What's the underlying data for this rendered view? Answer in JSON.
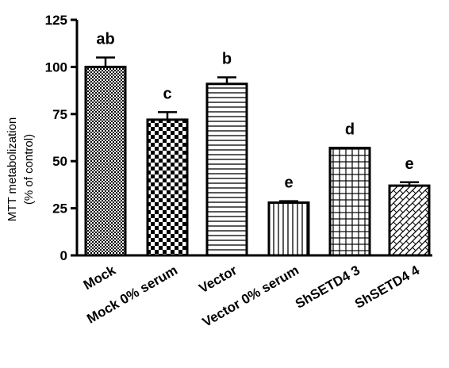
{
  "chart_data": {
    "type": "bar",
    "categories": [
      "Mock",
      "Mock 0% serum",
      "Vector",
      "Vector 0% serum",
      "ShSETD4 3",
      "ShSETD4 4"
    ],
    "values": [
      100,
      72,
      91,
      28,
      57,
      37
    ],
    "errors": [
      5,
      4,
      3.5,
      0.8,
      0,
      1.8
    ],
    "significance": [
      "ab",
      "c",
      "b",
      "e",
      "d",
      "e"
    ],
    "patterns": [
      "fine-check",
      "checker",
      "horizontal-lines",
      "vertical-lines",
      "grid",
      "diagonal-weave"
    ],
    "ylabel": [
      "MTT metabolization",
      "(% of control)"
    ],
    "ylim": [
      0,
      125
    ],
    "yticks": [
      0,
      25,
      50,
      75,
      100,
      125
    ],
    "grid": false,
    "legend": "none"
  }
}
